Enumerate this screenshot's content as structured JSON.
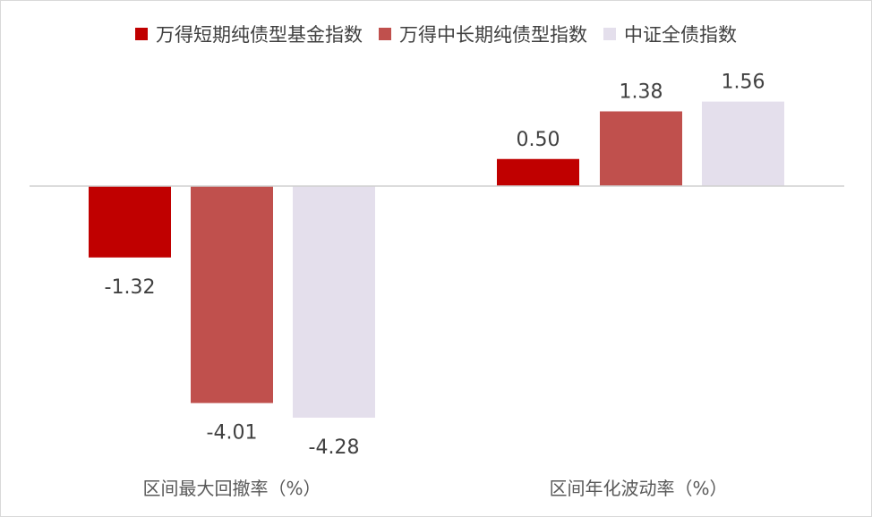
{
  "chart_data": {
    "type": "bar",
    "categories": [
      "区间最大回撤率（%）",
      "区间年化波动率（%）"
    ],
    "series": [
      {
        "name": "万得短期纯债型基金指数",
        "values": [
          -1.32,
          0.5
        ],
        "labels": [
          "-1.32",
          "0.50"
        ],
        "color": "#c00000"
      },
      {
        "name": "万得中长期纯债型指数",
        "values": [
          -4.01,
          1.38
        ],
        "labels": [
          "-4.01",
          "1.38"
        ],
        "color": "#c0504d"
      },
      {
        "name": "中证全债指数",
        "values": [
          -4.28,
          1.56
        ],
        "labels": [
          "-4.28",
          "1.56"
        ],
        "color": "#e4dfec"
      }
    ],
    "legend_position": "top",
    "grid": false
  }
}
